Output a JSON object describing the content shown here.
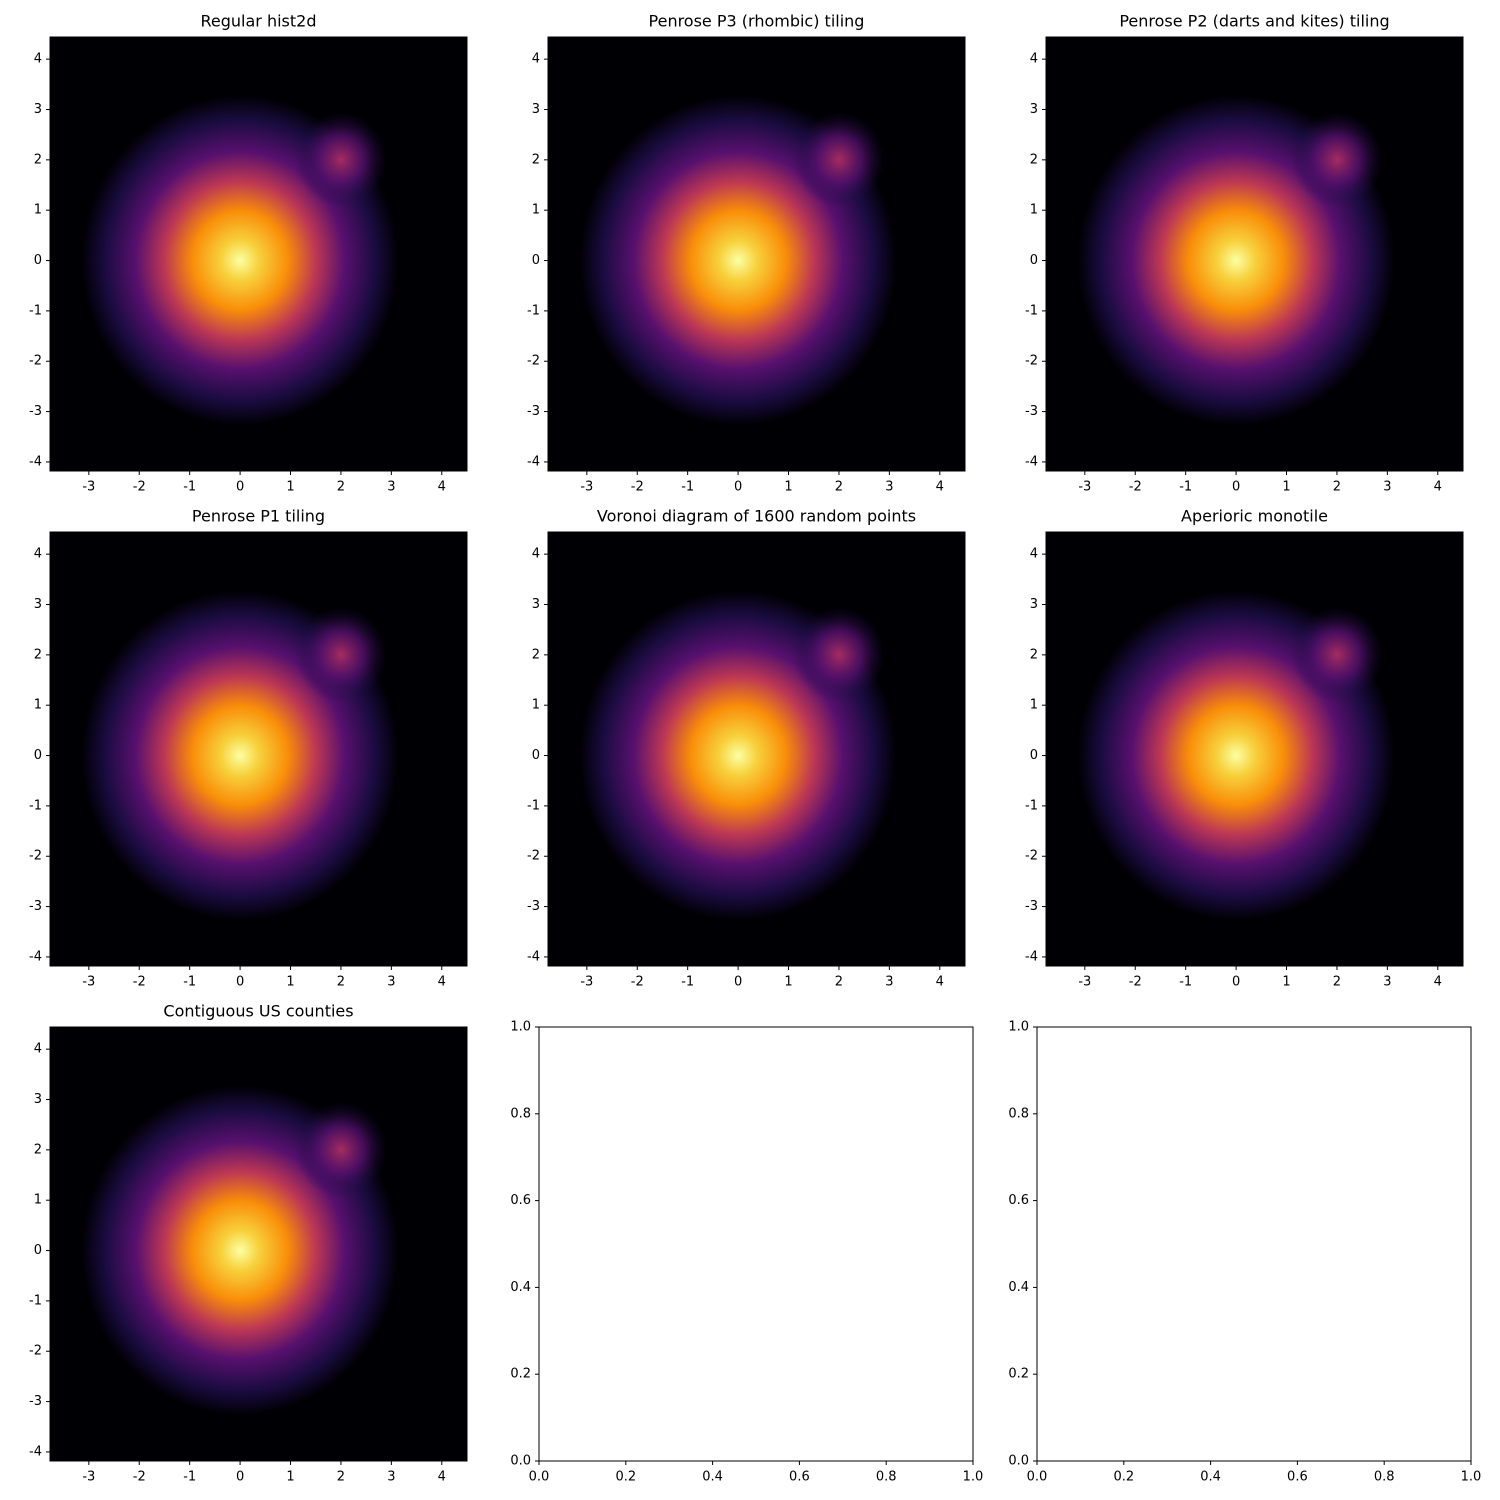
{
  "chart_data": [
    {
      "type": "heatmap",
      "title": "Regular hist2d",
      "xlim": [
        -3.77,
        4.5
      ],
      "ylim": [
        -4.18,
        4.44
      ],
      "xticks": [
        -3,
        -2,
        -1,
        0,
        1,
        2,
        3,
        4
      ],
      "yticks": [
        -4,
        -3,
        -2,
        -1,
        0,
        1,
        2,
        3,
        4
      ]
    },
    {
      "type": "heatmap",
      "title": "Penrose P3 (rhombic) tiling",
      "xlim": [
        -3.77,
        4.5
      ],
      "ylim": [
        -4.18,
        4.44
      ],
      "xticks": [
        -3,
        -2,
        -1,
        0,
        1,
        2,
        3,
        4
      ],
      "yticks": [
        -4,
        -3,
        -2,
        -1,
        0,
        1,
        2,
        3,
        4
      ]
    },
    {
      "type": "heatmap",
      "title": "Penrose P2 (darts and kites) tiling",
      "xlim": [
        -3.77,
        4.5
      ],
      "ylim": [
        -4.18,
        4.44
      ],
      "xticks": [
        -3,
        -2,
        -1,
        0,
        1,
        2,
        3,
        4
      ],
      "yticks": [
        -4,
        -3,
        -2,
        -1,
        0,
        1,
        2,
        3,
        4
      ]
    },
    {
      "type": "heatmap",
      "title": "Penrose P1 tiling",
      "xlim": [
        -3.77,
        4.5
      ],
      "ylim": [
        -4.18,
        4.44
      ],
      "xticks": [
        -3,
        -2,
        -1,
        0,
        1,
        2,
        3,
        4
      ],
      "yticks": [
        -4,
        -3,
        -2,
        -1,
        0,
        1,
        2,
        3,
        4
      ]
    },
    {
      "type": "heatmap",
      "title": "Voronoi diagram of 1600 random points",
      "xlim": [
        -3.77,
        4.5
      ],
      "ylim": [
        -4.18,
        4.44
      ],
      "xticks": [
        -3,
        -2,
        -1,
        0,
        1,
        2,
        3,
        4
      ],
      "yticks": [
        -4,
        -3,
        -2,
        -1,
        0,
        1,
        2,
        3,
        4
      ]
    },
    {
      "type": "heatmap",
      "title": "Aperioric monotile",
      "xlim": [
        -3.77,
        4.5
      ],
      "ylim": [
        -4.18,
        4.44
      ],
      "xticks": [
        -3,
        -2,
        -1,
        0,
        1,
        2,
        3,
        4
      ],
      "yticks": [
        -4,
        -3,
        -2,
        -1,
        0,
        1,
        2,
        3,
        4
      ]
    },
    {
      "type": "heatmap",
      "title": "Contiguous US counties",
      "xlim": [
        -3.77,
        4.5
      ],
      "ylim": [
        -4.18,
        4.44
      ],
      "xticks": [
        -3,
        -2,
        -1,
        0,
        1,
        2,
        3,
        4
      ],
      "yticks": [
        -4,
        -3,
        -2,
        -1,
        0,
        1,
        2,
        3,
        4
      ]
    },
    {
      "type": "empty",
      "xlim": [
        0,
        1
      ],
      "ylim": [
        0,
        1
      ],
      "xticks": [
        {
          "value": 0,
          "label": "0.0"
        },
        {
          "value": 0.2,
          "label": "0.2"
        },
        {
          "value": 0.4,
          "label": "0.4"
        },
        {
          "value": 0.6,
          "label": "0.6"
        },
        {
          "value": 0.8,
          "label": "0.8"
        },
        {
          "value": 1,
          "label": "1.0"
        }
      ],
      "yticks": [
        {
          "value": 0,
          "label": "0.0"
        },
        {
          "value": 0.2,
          "label": "0.2"
        },
        {
          "value": 0.4,
          "label": "0.4"
        },
        {
          "value": 0.6,
          "label": "0.6"
        },
        {
          "value": 0.8,
          "label": "0.8"
        },
        {
          "value": 1,
          "label": "1.0"
        }
      ]
    },
    {
      "type": "empty",
      "xlim": [
        0,
        1
      ],
      "ylim": [
        0,
        1
      ],
      "xticks": [
        {
          "value": 0,
          "label": "0.0"
        },
        {
          "value": 0.2,
          "label": "0.2"
        },
        {
          "value": 0.4,
          "label": "0.4"
        },
        {
          "value": 0.6,
          "label": "0.6"
        },
        {
          "value": 0.8,
          "label": "0.8"
        },
        {
          "value": 1,
          "label": "1.0"
        }
      ],
      "yticks": [
        {
          "value": 0,
          "label": "0.0"
        },
        {
          "value": 0.2,
          "label": "0.2"
        },
        {
          "value": 0.4,
          "label": "0.4"
        },
        {
          "value": 0.6,
          "label": "0.6"
        },
        {
          "value": 0.8,
          "label": "0.8"
        },
        {
          "value": 1,
          "label": "1.0"
        }
      ]
    }
  ]
}
